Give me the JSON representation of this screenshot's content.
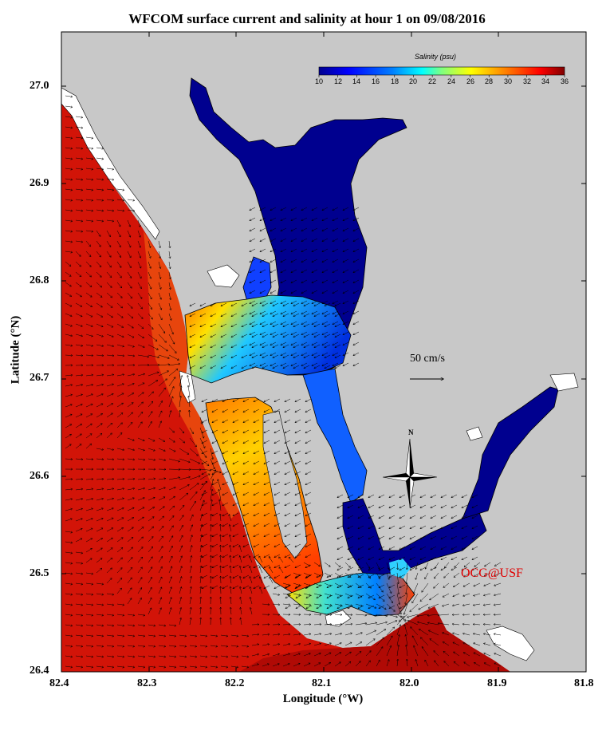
{
  "title": "WFCOM surface current and salinity at hour 1 on 09/08/2016",
  "x_axis": {
    "label": "Longitude (°W)",
    "ticks": [
      "82.4",
      "82.3",
      "82.2",
      "82.1",
      "82.0",
      "81.9",
      "81.8"
    ],
    "range": [
      82.4,
      81.8
    ]
  },
  "y_axis": {
    "label": "Latitude (°N)",
    "ticks": [
      "27.0",
      "26.9",
      "26.8",
      "26.7",
      "26.6",
      "26.5",
      "26.4"
    ],
    "range": [
      26.4,
      27.06
    ]
  },
  "colorbar": {
    "title": "Salinity (psu)",
    "ticks": [
      "10",
      "12",
      "14",
      "16",
      "18",
      "20",
      "22",
      "24",
      "26",
      "28",
      "30",
      "32",
      "34",
      "36"
    ],
    "range": [
      10,
      36
    ],
    "colors": [
      "#00008f",
      "#0000ff",
      "#0080ff",
      "#00ffff",
      "#80ff80",
      "#ffff00",
      "#ff8000",
      "#ff0000",
      "#800000"
    ]
  },
  "scale_label": "50 cm/s",
  "compass_label": "N",
  "credit": "OCG@USF",
  "colors": {
    "land": "#c8c8c8",
    "gulf_water": "#d21408",
    "river_water": "#00008f",
    "credit": "#e00000"
  }
}
